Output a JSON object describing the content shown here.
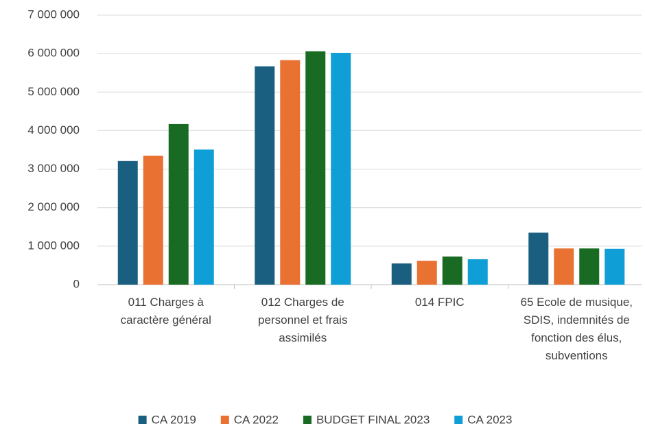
{
  "chart_data": {
    "type": "bar",
    "categories": [
      "011 Charges à caractère général",
      "012 Charges de personnel et frais assimilés",
      "014 FPIC",
      "65 Ecole de musique, SDIS, indemnités de fonction des élus, subventions"
    ],
    "series": [
      {
        "name": "CA 2019",
        "color": "#1a5e80",
        "values": [
          3210000,
          5670000,
          550000,
          1350000
        ]
      },
      {
        "name": "CA 2022",
        "color": "#e97132",
        "values": [
          3350000,
          5830000,
          620000,
          940000
        ]
      },
      {
        "name": "BUDGET FINAL 2023",
        "color": "#196b24",
        "values": [
          4170000,
          6060000,
          730000,
          940000
        ]
      },
      {
        "name": "CA 2023",
        "color": "#0f9ed5",
        "values": [
          3510000,
          6020000,
          660000,
          930000
        ]
      }
    ],
    "ylim": [
      0,
      7000000
    ],
    "yticks": [
      0,
      {
        "value": 1000000,
        "label": "1 000 000"
      },
      {
        "value": 2000000,
        "label": "2 000 000"
      },
      {
        "value": 3000000,
        "label": "3 000 000"
      },
      {
        "value": 4000000,
        "label": "4 000 000"
      },
      {
        "value": 5000000,
        "label": "5 000 000"
      },
      {
        "value": 6000000,
        "label": "6 000 000"
      },
      {
        "value": 7000000,
        "label": "7 000 000"
      }
    ],
    "grid": true,
    "legend": "bottom"
  }
}
